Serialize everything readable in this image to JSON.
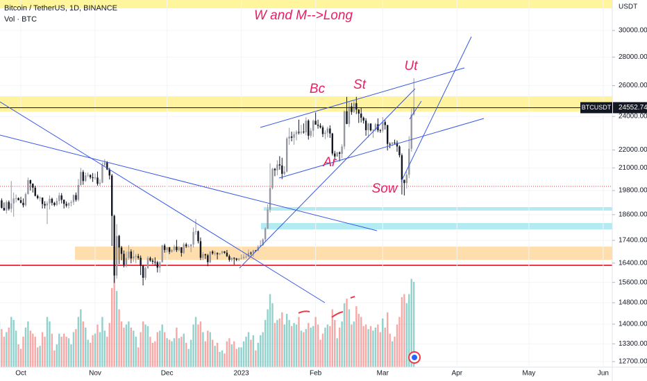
{
  "chart_data": {
    "type": "candlestick",
    "title": "Bitcoin / TetherUS, 1D, BINANCE",
    "volume_title": "Vol · BTC",
    "currency": "USDT",
    "symbol": "BTCUSDT",
    "annotations": [
      "W and M-->Long",
      "Bc",
      "St",
      "Ut",
      "Ar",
      "Sow"
    ],
    "log_scale": true,
    "grid": true,
    "up_color": "#9598a1",
    "down_color": "#131722",
    "volume_up_color": "rgba(38,166,154,0.5)",
    "volume_down_color": "rgba(239,83,80,0.5)",
    "ylim": [
      12520,
      32470
    ],
    "vlim": [
      0,
      660
    ],
    "xlim": [
      0.3,
      255.8
    ],
    "yticks": [
      {
        "value": 30000,
        "label": "30000.00"
      },
      {
        "value": 28000,
        "label": "28000.00"
      },
      {
        "value": 26000,
        "label": "26000.00"
      },
      {
        "value": 24000,
        "label": "24000.00"
      },
      {
        "value": 22000,
        "label": "22000.00"
      },
      {
        "value": 21000,
        "label": "21000.00"
      },
      {
        "value": 19800,
        "label": "19800.00"
      },
      {
        "value": 18600,
        "label": "18600.00"
      },
      {
        "value": 17400,
        "label": "17400.00"
      },
      {
        "value": 16400,
        "label": "16400.00"
      },
      {
        "value": 15600,
        "label": "15600.00"
      },
      {
        "value": 14800,
        "label": "14800.00"
      },
      {
        "value": 14000,
        "label": "14000.00"
      },
      {
        "value": 13300,
        "label": "13300.00"
      },
      {
        "value": 12700,
        "label": "12700.00"
      }
    ],
    "xticks": [
      {
        "value": 9,
        "label": "Oct"
      },
      {
        "value": 40,
        "label": "Nov"
      },
      {
        "value": 70,
        "label": "Dec"
      },
      {
        "value": 101,
        "label": "2023"
      },
      {
        "value": 132,
        "label": "Feb"
      },
      {
        "value": 160,
        "label": "Mar"
      },
      {
        "value": 191,
        "label": "Apr"
      },
      {
        "value": 221,
        "label": "May"
      },
      {
        "value": 252,
        "label": "Jun"
      }
    ],
    "ohlc": [
      [
        19000,
        19500,
        18600,
        19300
      ],
      [
        19300,
        19400,
        18900,
        18930
      ],
      [
        18930,
        19200,
        18800,
        18800
      ],
      [
        18800,
        19300,
        18650,
        19220
      ],
      [
        19220,
        19300,
        18800,
        18880
      ],
      [
        18880,
        20300,
        18700,
        19150
      ],
      [
        19150,
        19700,
        18500,
        19400
      ],
      [
        19400,
        19600,
        19200,
        19420
      ],
      [
        19420,
        19450,
        19300,
        19310
      ],
      [
        19310,
        19480,
        19150,
        19180
      ],
      [
        19180,
        19400,
        18950,
        19060
      ],
      [
        19060,
        19700,
        19000,
        19620
      ],
      [
        19620,
        20480,
        19600,
        20340
      ],
      [
        20340,
        20370,
        19800,
        20160
      ],
      [
        20160,
        20170,
        19700,
        19950
      ],
      [
        19950,
        20050,
        19500,
        19530
      ],
      [
        19530,
        19600,
        19350,
        19420
      ],
      [
        19420,
        19500,
        19250,
        19440
      ],
      [
        19440,
        19450,
        18900,
        19120
      ],
      [
        19120,
        19260,
        18900,
        19050
      ],
      [
        19050,
        19250,
        18150,
        19150
      ],
      [
        19150,
        19550,
        18850,
        19380
      ],
      [
        19380,
        19440,
        19050,
        19180
      ],
      [
        19180,
        19230,
        19000,
        19070
      ],
      [
        19070,
        19420,
        19020,
        19270
      ],
      [
        19270,
        19690,
        19100,
        19550
      ],
      [
        19550,
        19670,
        19150,
        19330
      ],
      [
        19330,
        19350,
        18900,
        19130
      ],
      [
        19130,
        19250,
        18950,
        19040
      ],
      [
        19040,
        19200,
        18900,
        19170
      ],
      [
        19170,
        19300,
        19000,
        19210
      ],
      [
        19210,
        19600,
        19070,
        19570
      ],
      [
        19570,
        19700,
        19240,
        19330
      ],
      [
        19330,
        20400,
        19250,
        20090
      ],
      [
        20090,
        21000,
        20050,
        20780
      ],
      [
        20780,
        20880,
        20100,
        20300
      ],
      [
        20300,
        20750,
        20250,
        20590
      ],
      [
        20590,
        20750,
        20500,
        20620
      ],
      [
        20620,
        20650,
        20400,
        20490
      ],
      [
        20490,
        20720,
        20250,
        20480
      ],
      [
        20480,
        20700,
        20360,
        20480
      ],
      [
        20480,
        20800,
        20050,
        20150
      ],
      [
        20150,
        20390,
        20050,
        20210
      ],
      [
        20210,
        21300,
        20180,
        21150
      ],
      [
        21150,
        21480,
        21080,
        21300
      ],
      [
        21300,
        21370,
        20880,
        20920
      ],
      [
        20920,
        21000,
        20380,
        20590
      ],
      [
        20590,
        20670,
        17150,
        18540
      ],
      [
        18540,
        18600,
        15580,
        15880
      ],
      [
        15880,
        18150,
        15750,
        17600
      ],
      [
        17600,
        17650,
        16360,
        17080
      ],
      [
        17080,
        17150,
        16520,
        16800
      ],
      [
        16800,
        16950,
        16220,
        16330
      ],
      [
        16330,
        16900,
        16220,
        16620
      ],
      [
        16620,
        17180,
        16540,
        16900
      ],
      [
        16900,
        17000,
        16400,
        16600
      ],
      [
        16600,
        16960,
        16450,
        16690
      ],
      [
        16690,
        16790,
        16400,
        16700
      ],
      [
        16700,
        16800,
        16550,
        16630
      ],
      [
        16630,
        16730,
        15900,
        16290
      ],
      [
        16290,
        16320,
        15480,
        15790
      ],
      [
        15790,
        16250,
        15700,
        16190
      ],
      [
        16190,
        16700,
        16160,
        16620
      ],
      [
        16620,
        16680,
        16460,
        16510
      ],
      [
        16510,
        16600,
        16350,
        16460
      ],
      [
        16460,
        16650,
        16300,
        16440
      ],
      [
        16440,
        16500,
        16010,
        16210
      ],
      [
        16210,
        16480,
        16000,
        16440
      ],
      [
        16440,
        17200,
        16430,
        17170
      ],
      [
        17170,
        17250,
        16850,
        16970
      ],
      [
        16970,
        17100,
        16860,
        17090
      ],
      [
        17090,
        17100,
        16790,
        16890
      ],
      [
        16890,
        17000,
        16850,
        16970
      ],
      [
        16970,
        17200,
        16900,
        17120
      ],
      [
        17120,
        17420,
        16880,
        16960
      ],
      [
        16960,
        17140,
        16910,
        17090
      ],
      [
        17090,
        17090,
        16680,
        16840
      ],
      [
        16840,
        17300,
        16790,
        17220
      ],
      [
        17220,
        17290,
        17060,
        17130
      ],
      [
        17130,
        17220,
        17090,
        17130
      ],
      [
        17130,
        17240,
        16870,
        17210
      ],
      [
        17210,
        17990,
        17080,
        17780
      ],
      [
        17780,
        18390,
        17650,
        17810
      ],
      [
        17810,
        17850,
        17260,
        17360
      ],
      [
        17360,
        17530,
        16530,
        16630
      ],
      [
        16630,
        16880,
        16530,
        16780
      ],
      [
        16780,
        16810,
        16580,
        16740
      ],
      [
        16740,
        16800,
        16270,
        16440
      ],
      [
        16440,
        16920,
        16400,
        16900
      ],
      [
        16900,
        16960,
        16760,
        16820
      ],
      [
        16820,
        16930,
        16730,
        16830
      ],
      [
        16830,
        16870,
        16560,
        16780
      ],
      [
        16780,
        16830,
        16740,
        16830
      ],
      [
        16830,
        16940,
        16780,
        16910
      ],
      [
        16910,
        16920,
        16800,
        16850
      ],
      [
        16850,
        16970,
        16660,
        16700
      ],
      [
        16700,
        16770,
        16460,
        16540
      ],
      [
        16540,
        16640,
        16470,
        16630
      ],
      [
        16630,
        16650,
        16330,
        16600
      ],
      [
        16600,
        16620,
        16480,
        16540
      ],
      [
        16540,
        16620,
        16480,
        16600
      ],
      [
        16600,
        16780,
        16550,
        16620
      ],
      [
        16620,
        16790,
        16560,
        16670
      ],
      [
        16670,
        16780,
        16600,
        16680
      ],
      [
        16680,
        16990,
        16650,
        16850
      ],
      [
        16850,
        16900,
        16740,
        16830
      ],
      [
        16830,
        16980,
        16670,
        16950
      ],
      [
        16950,
        16970,
        16900,
        16940
      ],
      [
        16940,
        17180,
        16910,
        17120
      ],
      [
        17120,
        17400,
        17100,
        17180
      ],
      [
        17180,
        17490,
        17150,
        17440
      ],
      [
        17440,
        18000,
        17320,
        17940
      ],
      [
        17940,
        19100,
        17920,
        18850
      ],
      [
        18850,
        21250,
        18700,
        19930
      ],
      [
        19930,
        21000,
        19860,
        20950
      ],
      [
        20950,
        21000,
        20550,
        20870
      ],
      [
        20870,
        21420,
        20600,
        21190
      ],
      [
        21190,
        21650,
        20900,
        21130
      ],
      [
        21130,
        21560,
        20400,
        20680
      ],
      [
        20680,
        21100,
        20600,
        20800
      ],
      [
        20800,
        22750,
        20750,
        22660
      ],
      [
        22660,
        23300,
        22300,
        22780
      ],
      [
        22780,
        23070,
        22500,
        22710
      ],
      [
        22710,
        23080,
        22300,
        22920
      ],
      [
        22920,
        23160,
        22550,
        23060
      ],
      [
        23060,
        23800,
        22900,
        23010
      ],
      [
        23010,
        23480,
        22900,
        23070
      ],
      [
        23070,
        23570,
        22950,
        23030
      ],
      [
        23030,
        23950,
        22850,
        23740
      ],
      [
        23740,
        23820,
        22600,
        22830
      ],
      [
        22830,
        23300,
        22710,
        23130
      ],
      [
        23130,
        23800,
        22750,
        23730
      ],
      [
        23730,
        24250,
        23500,
        23490
      ],
      [
        23490,
        23800,
        23250,
        23430
      ],
      [
        23430,
        23580,
        23260,
        23330
      ],
      [
        23330,
        23440,
        22750,
        22930
      ],
      [
        22930,
        23150,
        22630,
        23010
      ],
      [
        23010,
        23370,
        22730,
        23260
      ],
      [
        23260,
        23450,
        22700,
        22960
      ],
      [
        22960,
        23000,
        21690,
        21800
      ],
      [
        21800,
        21950,
        21460,
        21630
      ],
      [
        21630,
        21900,
        21620,
        21860
      ],
      [
        21860,
        21920,
        21360,
        21780
      ],
      [
        21780,
        22330,
        21530,
        22200
      ],
      [
        22200,
        24380,
        22050,
        24330
      ],
      [
        24330,
        25250,
        23520,
        23540
      ],
      [
        23540,
        24900,
        23350,
        24630
      ],
      [
        24630,
        24860,
        24100,
        24280
      ],
      [
        24280,
        25000,
        24220,
        24840
      ],
      [
        24840,
        25250,
        24150,
        24430
      ],
      [
        24430,
        24460,
        23600,
        24180
      ],
      [
        24180,
        24570,
        23630,
        23920
      ],
      [
        23920,
        23990,
        23560,
        23740
      ],
      [
        23740,
        23890,
        22830,
        23160
      ],
      [
        23160,
        23600,
        22720,
        23560
      ],
      [
        23560,
        23580,
        23080,
        23150
      ],
      [
        23150,
        23220,
        22700,
        23180
      ],
      [
        23180,
        23600,
        23080,
        23520
      ],
      [
        23520,
        23880,
        23030,
        23150
      ],
      [
        23150,
        23230,
        23000,
        23140
      ],
      [
        23140,
        23960,
        23020,
        23650
      ],
      [
        23650,
        23770,
        23200,
        23470
      ],
      [
        23470,
        23480,
        21970,
        22350
      ],
      [
        22350,
        22440,
        22100,
        22340
      ],
      [
        22340,
        22460,
        22220,
        22430
      ],
      [
        22430,
        22600,
        22300,
        22410
      ],
      [
        22410,
        22550,
        21900,
        22200
      ],
      [
        22200,
        22270,
        21580,
        21700
      ],
      [
        21700,
        21800,
        19600,
        20360
      ],
      [
        20360,
        20370,
        19550,
        20190
      ],
      [
        20190,
        20800,
        19900,
        20630
      ],
      [
        20630,
        22800,
        20450,
        22070
      ],
      [
        22070,
        24500,
        21900,
        24120
      ],
      [
        24120,
        26500,
        24050,
        24552.74
      ]
    ],
    "volume": [
      300,
      250,
      200,
      230,
      260,
      330,
      310,
      240,
      150,
      120,
      200,
      260,
      300,
      240,
      220,
      200,
      130,
      140,
      230,
      200,
      330,
      300,
      220,
      110,
      150,
      220,
      200,
      220,
      200,
      190,
      150,
      230,
      250,
      330,
      380,
      300,
      260,
      180,
      160,
      210,
      220,
      280,
      230,
      330,
      240,
      200,
      290,
      520,
      600,
      500,
      380,
      300,
      260,
      280,
      300,
      260,
      240,
      200,
      130,
      230,
      300,
      280,
      270,
      200,
      160,
      170,
      230,
      240,
      280,
      230,
      190,
      180,
      170,
      190,
      260,
      190,
      200,
      220,
      160,
      120,
      180,
      280,
      330,
      280,
      300,
      230,
      170,
      240,
      230,
      180,
      140,
      160,
      100,
      110,
      90,
      170,
      190,
      150,
      170,
      120,
      130,
      130,
      170,
      200,
      230,
      180,
      210,
      110,
      160,
      210,
      230,
      310,
      380,
      480,
      420,
      290,
      310,
      320,
      360,
      280,
      350,
      310,
      270,
      290,
      280,
      330,
      240,
      230,
      250,
      290,
      260,
      270,
      330,
      280,
      180,
      220,
      260,
      280,
      270,
      380,
      310,
      190,
      260,
      300,
      420,
      450,
      380,
      280,
      300,
      400,
      350,
      330,
      270,
      280,
      250,
      270,
      240,
      260,
      280,
      230,
      320,
      260,
      360,
      220,
      170,
      200,
      280,
      330,
      460,
      480,
      420,
      480,
      580,
      560
    ]
  }
}
